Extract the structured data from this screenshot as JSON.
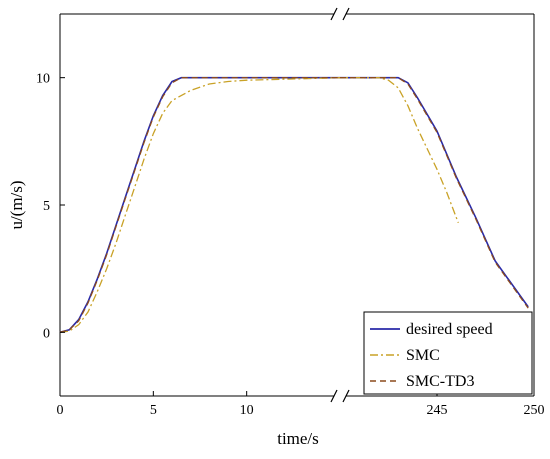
{
  "chart_data": {
    "type": "line",
    "title": "",
    "xlabel": "time/s",
    "ylabel": "u/(m/s)",
    "ylim": [
      -2.5,
      12.5
    ],
    "broken_x_axis": true,
    "x_segments": [
      {
        "range": [
          0,
          15
        ],
        "ticks": [
          0,
          5,
          10
        ]
      },
      {
        "range": [
          240,
          250
        ],
        "ticks": [
          245,
          250
        ]
      }
    ],
    "y_ticks": [
      0,
      5,
      10
    ],
    "legend_position": "bottom-right",
    "series": [
      {
        "name": "desired speed",
        "color": "#2a2aa8",
        "dash": "solid",
        "x": [
          0,
          0.5,
          1,
          1.5,
          2,
          2.5,
          3,
          3.5,
          4,
          4.5,
          5,
          5.5,
          6,
          6.5,
          7,
          10,
          15,
          240,
          243,
          243.5,
          244,
          245,
          246,
          247,
          248,
          249.7
        ],
        "y": [
          0,
          0.1,
          0.5,
          1.2,
          2.1,
          3.1,
          4.2,
          5.3,
          6.4,
          7.5,
          8.5,
          9.3,
          9.85,
          10,
          10,
          10,
          10,
          10,
          10,
          9.8,
          9.2,
          7.9,
          6.1,
          4.5,
          2.8,
          1.0
        ]
      },
      {
        "name": "SMC",
        "color": "#c9a227",
        "dash": "dashdot",
        "x": [
          0,
          0.5,
          1,
          1.5,
          2,
          2.5,
          3,
          3.5,
          4,
          4.5,
          5,
          5.5,
          6,
          7,
          8,
          9,
          10,
          15,
          240,
          242,
          242.5,
          243,
          243.5,
          244,
          244.5,
          245,
          245.5,
          246.1
        ],
        "y": [
          0,
          0.05,
          0.3,
          0.8,
          1.6,
          2.5,
          3.5,
          4.6,
          5.7,
          6.8,
          7.8,
          8.6,
          9.1,
          9.5,
          9.75,
          9.85,
          9.9,
          10,
          10,
          10,
          9.9,
          9.6,
          8.9,
          8.0,
          7.2,
          6.4,
          5.5,
          4.3
        ]
      },
      {
        "name": "SMC-TD3",
        "color": "#8b4a1c",
        "dash": "dashed",
        "x": [
          0,
          0.5,
          1,
          1.5,
          2,
          2.5,
          3,
          3.5,
          4,
          4.5,
          5,
          5.5,
          6,
          6.5,
          7,
          10,
          15,
          240,
          243,
          243.5,
          244,
          245,
          246,
          247,
          248,
          249.7
        ],
        "y": [
          0,
          0.1,
          0.45,
          1.15,
          2.05,
          3.05,
          4.15,
          5.25,
          6.35,
          7.45,
          8.45,
          9.25,
          9.8,
          10,
          10,
          10,
          10,
          10,
          10,
          9.75,
          9.15,
          7.85,
          6.05,
          4.45,
          2.75,
          0.95
        ]
      }
    ]
  }
}
